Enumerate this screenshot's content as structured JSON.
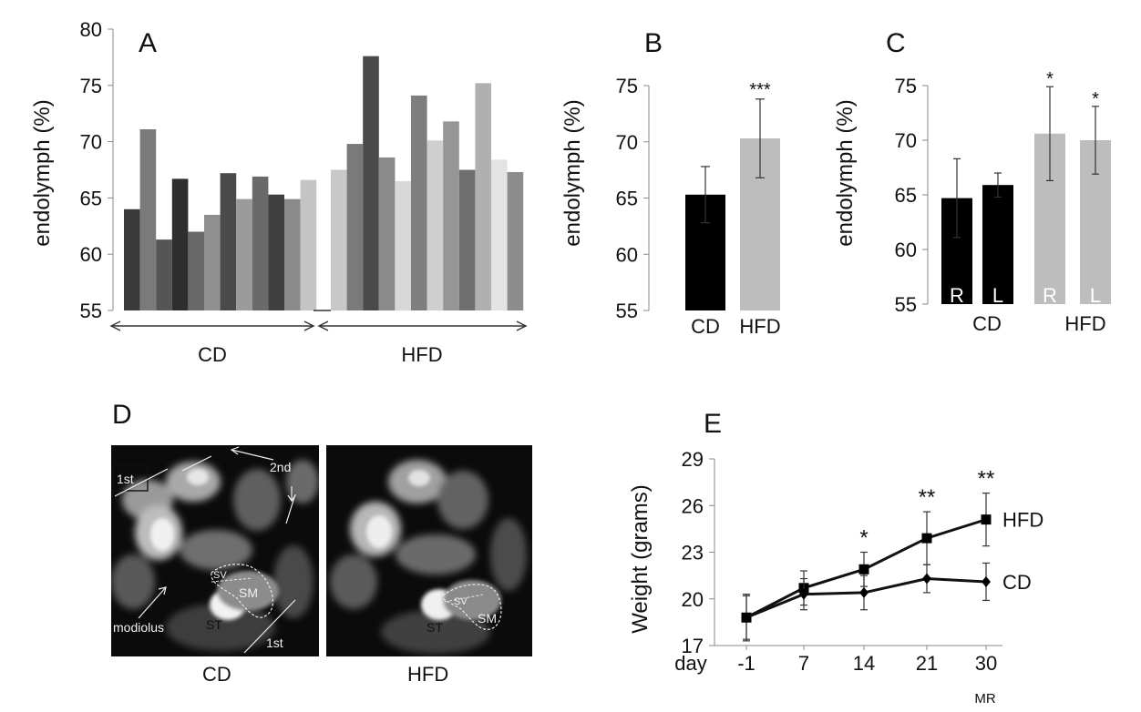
{
  "panel_labels": [
    "A",
    "B",
    "C",
    "D",
    "E"
  ],
  "chart_data": [
    {
      "panel": "A",
      "type": "bar",
      "ylabel": "endolymph (%)",
      "ylim": [
        55,
        80
      ],
      "yticks": [
        55,
        60,
        65,
        70,
        75,
        80
      ],
      "groups": [
        {
          "name": "CD",
          "values": [
            64.0,
            71.1,
            61.3,
            66.7,
            62.0,
            63.5,
            67.2,
            64.9,
            66.9,
            65.3,
            64.9,
            66.6
          ],
          "colors": [
            "#3a3a3a",
            "#7a7a7a",
            "#555555",
            "#2e2e2e",
            "#686868",
            "#8f8f8f",
            "#4a4a4a",
            "#9b9b9b",
            "#6a6a6a",
            "#3f3f3f",
            "#8a8a8a",
            "#c4c4c4"
          ]
        },
        {
          "name": "HFD",
          "values": [
            67.5,
            69.8,
            77.6,
            68.6,
            66.5,
            74.1,
            70.1,
            71.8,
            67.5,
            75.2,
            68.4,
            67.3
          ],
          "colors": [
            "#c8c8c8",
            "#7a7a7a",
            "#4a4a4a",
            "#8a8a8a",
            "#d8d8d8",
            "#7e7e7e",
            "#cfcfcf",
            "#969696",
            "#6f6f6f",
            "#b0b0b0",
            "#e3e3e3",
            "#8c8c8c"
          ]
        }
      ]
    },
    {
      "panel": "B",
      "type": "bar",
      "ylabel": "endolymph (%)",
      "ylim": [
        55,
        75
      ],
      "yticks": [
        55,
        60,
        65,
        70,
        75
      ],
      "categories": [
        "CD",
        "HFD"
      ],
      "values": [
        65.3,
        70.3
      ],
      "errors": [
        2.5,
        3.5
      ],
      "colors": [
        "#000000",
        "#bdbdbd"
      ],
      "significance": [
        "",
        "***"
      ]
    },
    {
      "panel": "C",
      "type": "bar",
      "ylabel": "endolymph (%)",
      "ylim": [
        55,
        75
      ],
      "yticks": [
        55,
        60,
        65,
        70,
        75
      ],
      "categories": [
        "R",
        "L",
        "R",
        "L"
      ],
      "groups": [
        "CD",
        "HFD"
      ],
      "values": [
        64.7,
        65.9,
        70.6,
        70.0
      ],
      "errors": [
        3.6,
        1.1,
        4.3,
        3.1
      ],
      "colors": [
        "#000000",
        "#000000",
        "#bdbdbd",
        "#bdbdbd"
      ],
      "significance": [
        "",
        "",
        "*",
        "*"
      ]
    },
    {
      "panel": "E",
      "type": "line",
      "ylabel": "Weight (grams)",
      "x_prefix": "day",
      "x": [
        "-1",
        "7",
        "14",
        "21",
        "30"
      ],
      "x_note": "MR",
      "ylim": [
        17,
        29
      ],
      "yticks": [
        17,
        20,
        23,
        26,
        29
      ],
      "series": [
        {
          "name": "HFD",
          "marker": "square",
          "values": [
            18.8,
            20.7,
            21.9,
            23.9,
            25.1
          ],
          "errors": [
            1.5,
            1.1,
            1.1,
            1.7,
            1.7
          ]
        },
        {
          "name": "CD",
          "marker": "diamond",
          "values": [
            18.8,
            20.3,
            20.4,
            21.3,
            21.1
          ],
          "errors": [
            1.4,
            1.0,
            1.1,
            0.9,
            1.2
          ]
        }
      ],
      "significance": [
        "",
        "",
        "*",
        "**",
        "**"
      ]
    }
  ],
  "mri_panel": {
    "left_caption": "CD",
    "right_caption": "HFD",
    "annotations": {
      "first_turn": "1st",
      "second_turn": "2nd",
      "modiolus": "modiolus",
      "sv": "SV",
      "sm": "SM",
      "st": "ST"
    }
  }
}
